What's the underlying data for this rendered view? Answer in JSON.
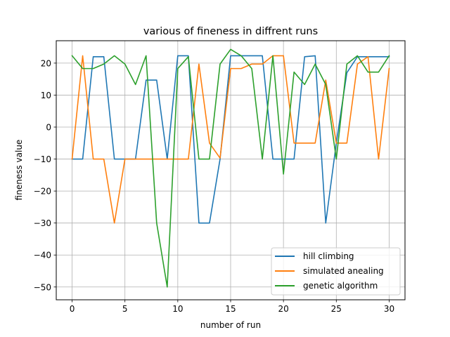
{
  "chart_data": {
    "type": "line",
    "title": "various of fineness in diffrent runs",
    "xlabel": "number of run",
    "ylabel": "fineness value",
    "xlim": [
      -1.5,
      31.5
    ],
    "ylim": [
      -54,
      27
    ],
    "xticks": [
      0,
      5,
      10,
      15,
      20,
      25,
      30
    ],
    "yticks": [
      -50,
      -40,
      -30,
      -20,
      -10,
      0,
      10,
      20
    ],
    "grid": true,
    "legend_position": "bottom-right",
    "x": [
      0,
      1,
      2,
      3,
      4,
      5,
      6,
      7,
      8,
      9,
      10,
      11,
      12,
      13,
      14,
      15,
      16,
      17,
      18,
      19,
      20,
      21,
      22,
      23,
      24,
      25,
      26,
      27,
      28,
      29,
      30
    ],
    "series": [
      {
        "name": "hill climbing",
        "color": "#1f77b4",
        "values": [
          -10,
          -10,
          22,
          22,
          -10,
          -10,
          -10,
          14.7,
          14.7,
          -10,
          22.3,
          22.3,
          -30,
          -30,
          -10,
          22.3,
          22.3,
          22.3,
          22.3,
          -10,
          -10,
          -10,
          22,
          22.3,
          -30,
          -5,
          17,
          22,
          22,
          22,
          22
        ]
      },
      {
        "name": "simulated anealing",
        "color": "#ff7f0e",
        "values": [
          -10,
          22.3,
          -10,
          -10,
          -30,
          -10,
          -10,
          -10,
          -10,
          -10,
          -10,
          -10,
          19.7,
          -5,
          -9.7,
          18.3,
          18.3,
          19.7,
          19.7,
          22.3,
          22.3,
          -5,
          -5,
          -5,
          14.7,
          -5,
          -5,
          19.7,
          22,
          -10,
          18.3
        ]
      },
      {
        "name": "genetic algorithm",
        "color": "#2ca02c",
        "values": [
          22.3,
          18.3,
          18.3,
          19.7,
          22.3,
          19.7,
          13.3,
          22.3,
          -30,
          -50,
          18.3,
          22,
          -10,
          -10,
          19.7,
          24.3,
          22.3,
          18.3,
          -10,
          22.3,
          -14.7,
          17.2,
          13.3,
          19.7,
          13.3,
          -10,
          19.7,
          22.3,
          17.2,
          17.2,
          22.3
        ]
      }
    ]
  }
}
